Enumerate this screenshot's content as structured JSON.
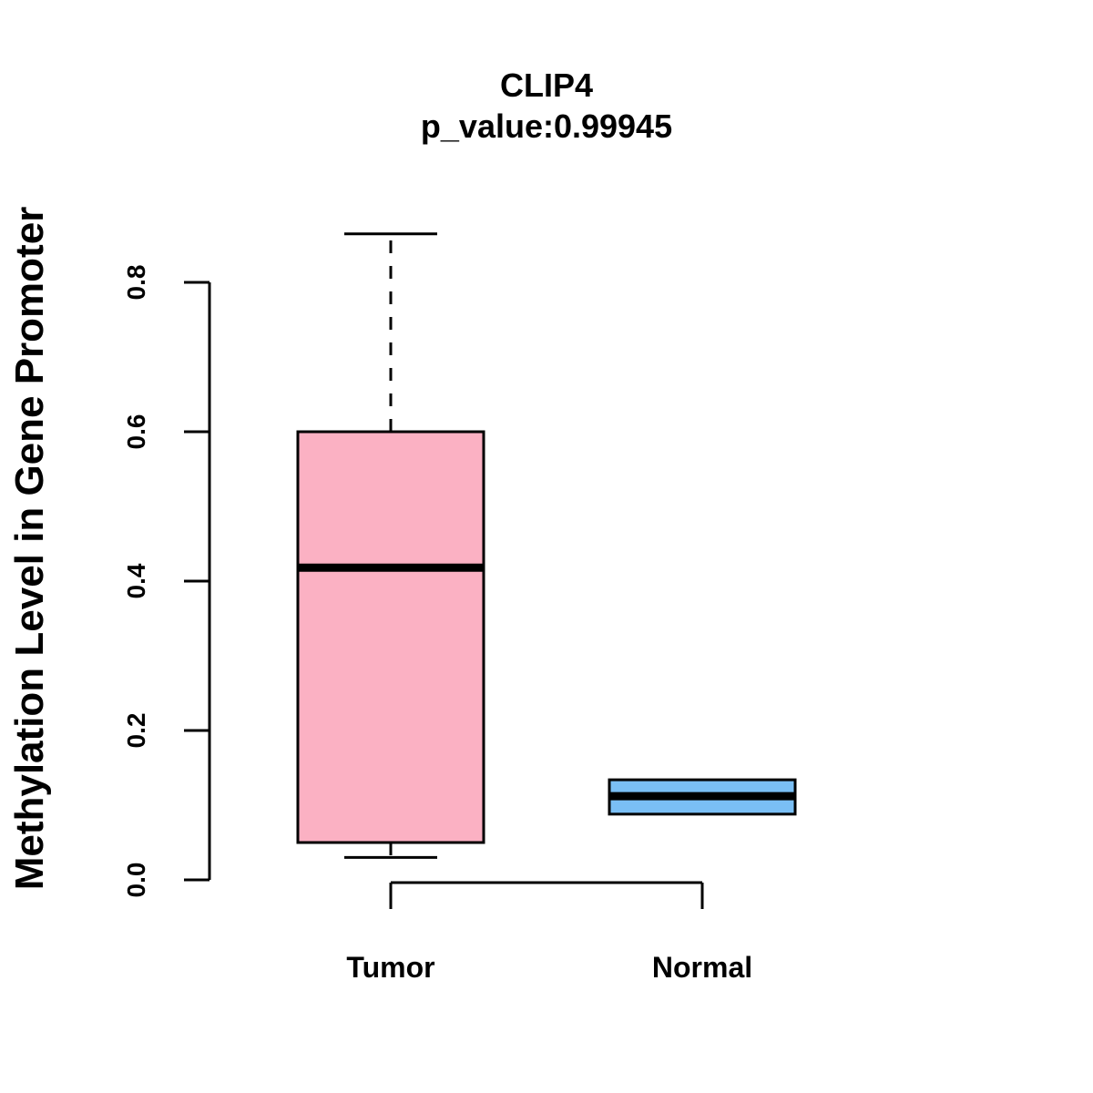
{
  "chart_data": {
    "type": "boxplot",
    "title": "CLIP4",
    "subtitle": "p_value:0.99945",
    "ylabel": "Methylation Level in Gene Promoter",
    "xlabel": "",
    "ylim": [
      0,
      0.8
    ],
    "yticks": [
      "0.0",
      "0.2",
      "0.4",
      "0.6",
      "0.8"
    ],
    "ytick_values": [
      0,
      0.2,
      0.4,
      0.6,
      0.8
    ],
    "categories": [
      "Tumor",
      "Normal"
    ],
    "boxes": [
      {
        "name": "Tumor",
        "min": 0.03,
        "q1": 0.05,
        "median": 0.418,
        "q3": 0.6,
        "max": 0.865,
        "color": "#fbb1c3"
      },
      {
        "name": "Normal",
        "min": 0.088,
        "q1": 0.088,
        "median": 0.112,
        "q3": 0.134,
        "max": 0.134,
        "color": "#7abff5"
      }
    ],
    "grid": false
  }
}
